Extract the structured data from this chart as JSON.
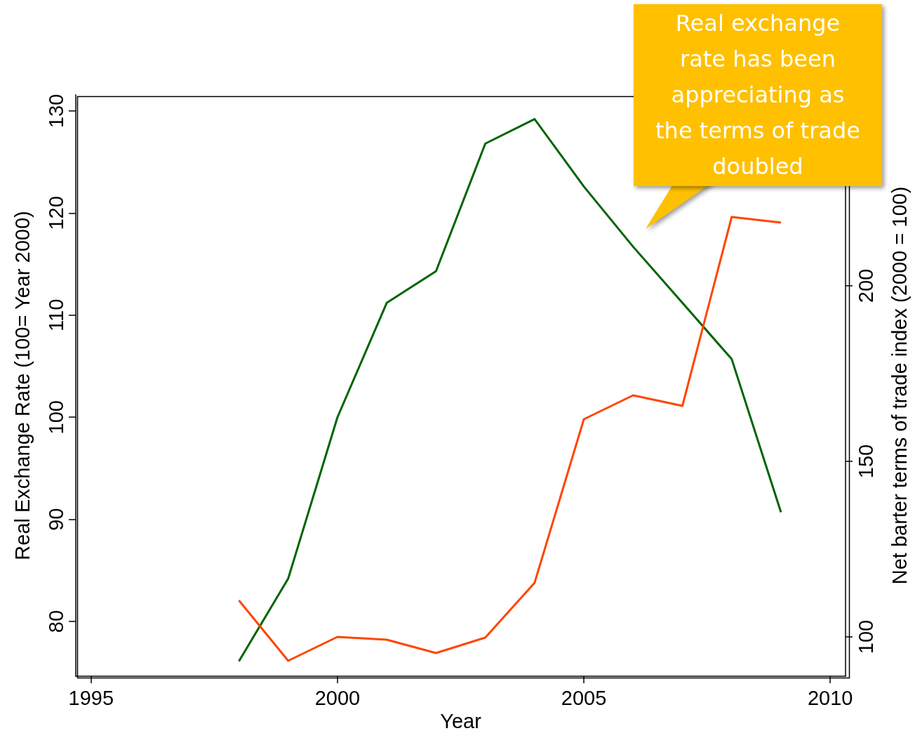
{
  "chart_data": {
    "type": "line",
    "xlabel": "Year",
    "ylabel": "Real Exchange Rate (100= Year 2000)",
    "y2label": "Net barter terms of trade index (2000 = 100)",
    "x": [
      1998,
      1999,
      2000,
      2001,
      2002,
      2003,
      2004,
      2005,
      2006,
      2007,
      2008,
      2009
    ],
    "series": [
      {
        "color": "#006400",
        "values": [
          76.1,
          84.2,
          100,
          111.2,
          114.3,
          126.8,
          129.2,
          122.6,
          116.7,
          111.2,
          105.7,
          90.7
        ]
      },
      {
        "color": "#ff4500",
        "axis": "y2",
        "values": [
          110.4,
          93.2,
          100,
          99.2,
          95.4,
          99.8,
          115.4,
          162,
          168.8,
          165.8,
          219.6,
          218
        ]
      }
    ],
    "xlim": [
      1994.69,
      2010.31
    ],
    "xticks": [
      1995,
      2000,
      2005,
      2010
    ],
    "ylim": [
      74.64,
      131.58
    ],
    "yticks": [
      80,
      90,
      100,
      110,
      120,
      130
    ],
    "y2lim": [
      88.8,
      254.4
    ],
    "y2ticks": [
      100,
      150,
      200
    ],
    "grid": false,
    "marker": "none",
    "line_style": "solid",
    "annotations": [
      "Real exchange\nrate has been\nappreciating as\nthe terms of trade\ndoubled"
    ]
  }
}
